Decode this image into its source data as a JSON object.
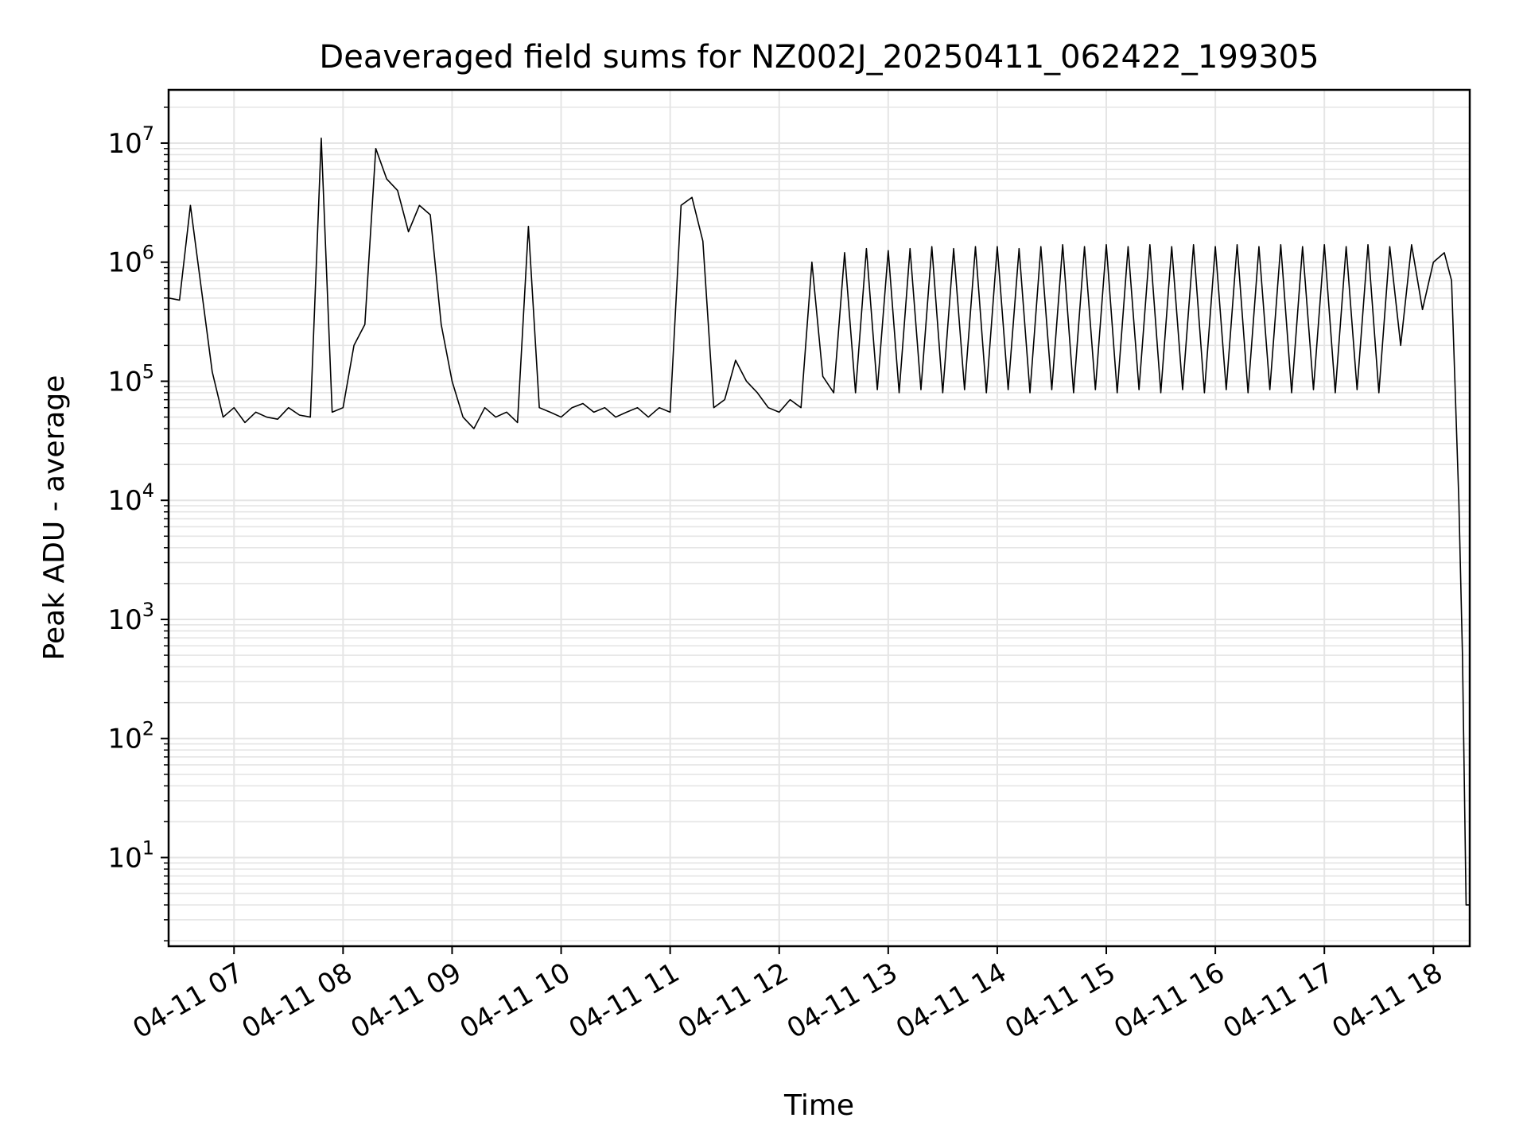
{
  "chart_data": {
    "type": "line",
    "title": "Deaveraged field sums for NZ002J_20250411_062422_199305",
    "xlabel": "Time",
    "ylabel": "Peak ADU - average",
    "yscale": "log",
    "ylim": [
      1.8,
      28000000
    ],
    "y_ticks": [
      {
        "value": 10,
        "base": "10",
        "exp": "1"
      },
      {
        "value": 100,
        "base": "10",
        "exp": "2"
      },
      {
        "value": 1000,
        "base": "10",
        "exp": "3"
      },
      {
        "value": 10000,
        "base": "10",
        "exp": "4"
      },
      {
        "value": 100000,
        "base": "10",
        "exp": "5"
      },
      {
        "value": 1000000,
        "base": "10",
        "exp": "6"
      },
      {
        "value": 10000000,
        "base": "10",
        "exp": "7"
      }
    ],
    "xlim": [
      "2025-04-11 06:24",
      "2025-04-11 18:20"
    ],
    "x_ticks": [
      {
        "time": "2025-04-11 07:00",
        "label": "04-11 07"
      },
      {
        "time": "2025-04-11 08:00",
        "label": "04-11 08"
      },
      {
        "time": "2025-04-11 09:00",
        "label": "04-11 09"
      },
      {
        "time": "2025-04-11 10:00",
        "label": "04-11 10"
      },
      {
        "time": "2025-04-11 11:00",
        "label": "04-11 11"
      },
      {
        "time": "2025-04-11 12:00",
        "label": "04-11 12"
      },
      {
        "time": "2025-04-11 13:00",
        "label": "04-11 13"
      },
      {
        "time": "2025-04-11 14:00",
        "label": "04-11 14"
      },
      {
        "time": "2025-04-11 15:00",
        "label": "04-11 15"
      },
      {
        "time": "2025-04-11 16:00",
        "label": "04-11 16"
      },
      {
        "time": "2025-04-11 17:00",
        "label": "04-11 17"
      },
      {
        "time": "2025-04-11 18:00",
        "label": "04-11 18"
      }
    ],
    "grid": true,
    "line_color": "#000000",
    "grid_color": "#e5e5e5",
    "series": [
      {
        "x": [
          "2025-04-11 06:24",
          "2025-04-11 06:30",
          "2025-04-11 06:36",
          "2025-04-11 06:42",
          "2025-04-11 06:48",
          "2025-04-11 06:54",
          "2025-04-11 07:00",
          "2025-04-11 07:06",
          "2025-04-11 07:12",
          "2025-04-11 07:18",
          "2025-04-11 07:24",
          "2025-04-11 07:30",
          "2025-04-11 07:36",
          "2025-04-11 07:42",
          "2025-04-11 07:48",
          "2025-04-11 07:54",
          "2025-04-11 08:00",
          "2025-04-11 08:06",
          "2025-04-11 08:12",
          "2025-04-11 08:18",
          "2025-04-11 08:24",
          "2025-04-11 08:30",
          "2025-04-11 08:36",
          "2025-04-11 08:42",
          "2025-04-11 08:48",
          "2025-04-11 08:54",
          "2025-04-11 09:00",
          "2025-04-11 09:06",
          "2025-04-11 09:12",
          "2025-04-11 09:18",
          "2025-04-11 09:24",
          "2025-04-11 09:30",
          "2025-04-11 09:36",
          "2025-04-11 09:42",
          "2025-04-11 09:48",
          "2025-04-11 09:54",
          "2025-04-11 10:00",
          "2025-04-11 10:06",
          "2025-04-11 10:12",
          "2025-04-11 10:18",
          "2025-04-11 10:24",
          "2025-04-11 10:30",
          "2025-04-11 10:36",
          "2025-04-11 10:42",
          "2025-04-11 10:48",
          "2025-04-11 10:54",
          "2025-04-11 11:00",
          "2025-04-11 11:06",
          "2025-04-11 11:12",
          "2025-04-11 11:18",
          "2025-04-11 11:24",
          "2025-04-11 11:30",
          "2025-04-11 11:36",
          "2025-04-11 11:42",
          "2025-04-11 11:48",
          "2025-04-11 11:54",
          "2025-04-11 12:00",
          "2025-04-11 12:06",
          "2025-04-11 12:12",
          "2025-04-11 12:18",
          "2025-04-11 12:24",
          "2025-04-11 12:30",
          "2025-04-11 12:36",
          "2025-04-11 12:42",
          "2025-04-11 12:48",
          "2025-04-11 12:54",
          "2025-04-11 13:00",
          "2025-04-11 13:06",
          "2025-04-11 13:12",
          "2025-04-11 13:18",
          "2025-04-11 13:24",
          "2025-04-11 13:30",
          "2025-04-11 13:36",
          "2025-04-11 13:42",
          "2025-04-11 13:48",
          "2025-04-11 13:54",
          "2025-04-11 14:00",
          "2025-04-11 14:06",
          "2025-04-11 14:12",
          "2025-04-11 14:18",
          "2025-04-11 14:24",
          "2025-04-11 14:30",
          "2025-04-11 14:36",
          "2025-04-11 14:42",
          "2025-04-11 14:48",
          "2025-04-11 14:54",
          "2025-04-11 15:00",
          "2025-04-11 15:06",
          "2025-04-11 15:12",
          "2025-04-11 15:18",
          "2025-04-11 15:24",
          "2025-04-11 15:30",
          "2025-04-11 15:36",
          "2025-04-11 15:42",
          "2025-04-11 15:48",
          "2025-04-11 15:54",
          "2025-04-11 16:00",
          "2025-04-11 16:06",
          "2025-04-11 16:12",
          "2025-04-11 16:18",
          "2025-04-11 16:24",
          "2025-04-11 16:30",
          "2025-04-11 16:36",
          "2025-04-11 16:42",
          "2025-04-11 16:48",
          "2025-04-11 16:54",
          "2025-04-11 17:00",
          "2025-04-11 17:06",
          "2025-04-11 17:12",
          "2025-04-11 17:18",
          "2025-04-11 17:24",
          "2025-04-11 17:30",
          "2025-04-11 17:36",
          "2025-04-11 17:42",
          "2025-04-11 17:48",
          "2025-04-11 17:54",
          "2025-04-11 18:00",
          "2025-04-11 18:06",
          "2025-04-11 18:10",
          "2025-04-11 18:14",
          "2025-04-11 18:16",
          "2025-04-11 18:18",
          "2025-04-11 18:20"
        ],
        "y": [
          500000,
          480000,
          3000000,
          600000,
          120000,
          50000,
          60000,
          45000,
          55000,
          50000,
          48000,
          60000,
          52000,
          50000,
          11000000,
          55000,
          60000,
          200000,
          300000,
          9000000,
          5000000,
          4000000,
          1800000,
          3000000,
          2500000,
          300000,
          100000,
          50000,
          40000,
          60000,
          50000,
          55000,
          45000,
          2000000,
          60000,
          55000,
          50000,
          60000,
          65000,
          55000,
          60000,
          50000,
          55000,
          60000,
          50000,
          60000,
          55000,
          3000000,
          3500000,
          1500000,
          60000,
          70000,
          150000,
          100000,
          80000,
          60000,
          55000,
          70000,
          60000,
          1000000,
          110000,
          80000,
          1200000,
          80000,
          1300000,
          85000,
          1250000,
          80000,
          1300000,
          85000,
          1350000,
          80000,
          1300000,
          85000,
          1350000,
          80000,
          1350000,
          85000,
          1300000,
          80000,
          1350000,
          85000,
          1400000,
          80000,
          1350000,
          85000,
          1400000,
          80000,
          1350000,
          85000,
          1400000,
          80000,
          1350000,
          85000,
          1400000,
          80000,
          1350000,
          85000,
          1400000,
          80000,
          1350000,
          85000,
          1400000,
          80000,
          1350000,
          85000,
          1400000,
          80000,
          1350000,
          85000,
          1400000,
          80000,
          1350000,
          200000,
          1400000,
          400000,
          1000000,
          1200000,
          700000,
          10000,
          500,
          4,
          4
        ]
      }
    ]
  }
}
